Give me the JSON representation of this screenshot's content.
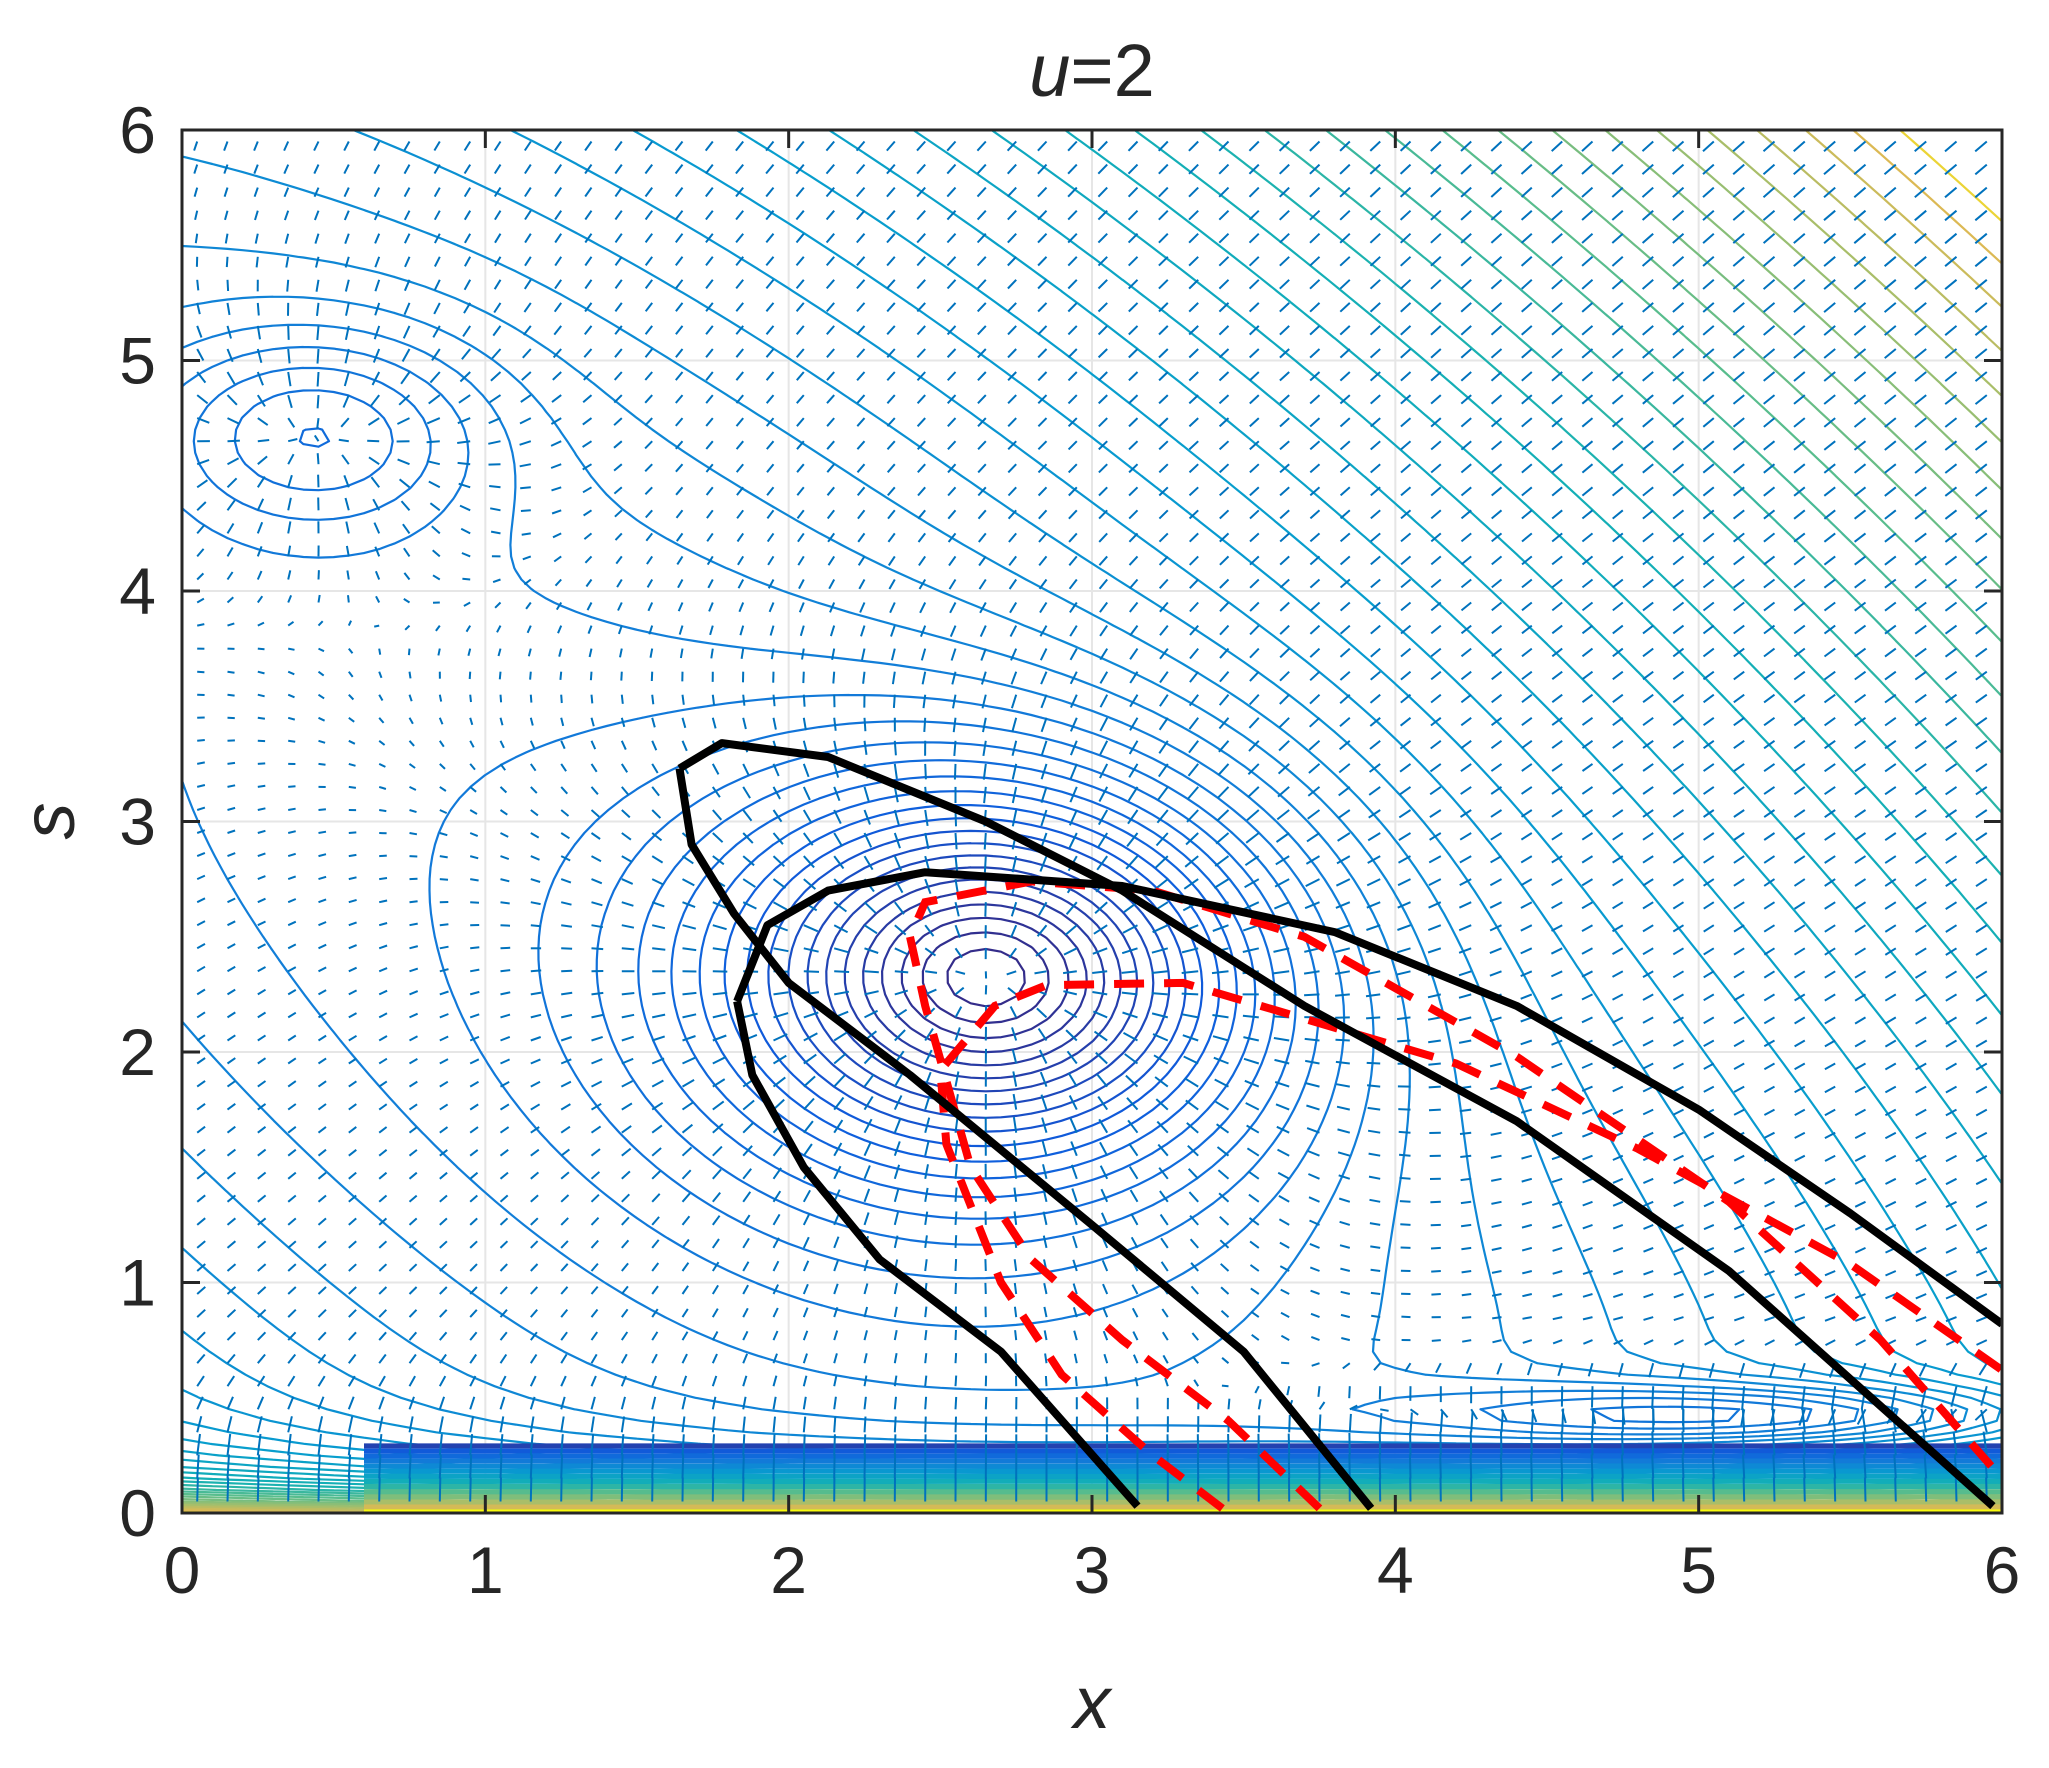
{
  "chart_data": {
    "type": "contour",
    "title": "u=2",
    "title_var": "u",
    "title_rest": "=2",
    "xlabel": "x",
    "ylabel": "s",
    "xlim": [
      0,
      6
    ],
    "ylim": [
      0,
      6
    ],
    "xticks": [
      0,
      1,
      2,
      3,
      4,
      5,
      6
    ],
    "yticks": [
      0,
      1,
      2,
      3,
      4,
      5,
      6
    ],
    "xtick_labels": [
      "0",
      "1",
      "2",
      "3",
      "4",
      "5",
      "6"
    ],
    "ytick_labels": [
      "0",
      "1",
      "2",
      "3",
      "4",
      "5",
      "6"
    ],
    "grid": true,
    "colormap": "parula",
    "quiver_color": "#0072BD",
    "boundary_color": "#000000",
    "reference_color": "#FF0000",
    "boundary_curves": [
      {
        "points": [
          [
            1.64,
            3.23
          ],
          [
            1.78,
            3.34
          ],
          [
            2.13,
            3.28
          ],
          [
            2.65,
            3.0
          ],
          [
            3.1,
            2.7
          ],
          [
            3.7,
            2.2
          ],
          [
            4.4,
            1.7
          ],
          [
            5.1,
            1.05
          ],
          [
            5.97,
            0.03
          ]
        ]
      },
      {
        "points": [
          [
            1.64,
            3.23
          ],
          [
            1.68,
            2.9
          ],
          [
            1.82,
            2.6
          ],
          [
            2.0,
            2.3
          ],
          [
            2.4,
            1.9
          ],
          [
            3.0,
            1.25
          ],
          [
            3.5,
            0.7
          ],
          [
            3.92,
            0.02
          ]
        ]
      },
      {
        "points": [
          [
            1.83,
            2.22
          ],
          [
            1.88,
            1.9
          ],
          [
            2.05,
            1.5
          ],
          [
            2.3,
            1.1
          ],
          [
            2.7,
            0.7
          ],
          [
            3.15,
            0.03
          ]
        ]
      },
      {
        "points": [
          [
            1.83,
            2.22
          ],
          [
            1.93,
            2.55
          ],
          [
            2.13,
            2.7
          ],
          [
            2.45,
            2.78
          ],
          [
            3.1,
            2.72
          ],
          [
            3.8,
            2.52
          ],
          [
            4.4,
            2.2
          ],
          [
            5.0,
            1.75
          ],
          [
            5.5,
            1.3
          ],
          [
            6.0,
            0.82
          ]
        ]
      }
    ],
    "reference_curves": [
      {
        "points": [
          [
            3.43,
            0.02
          ],
          [
            3.2,
            0.25
          ],
          [
            2.9,
            0.6
          ],
          [
            2.7,
            1.0
          ],
          [
            2.52,
            1.6
          ],
          [
            2.5,
            1.92
          ],
          [
            2.68,
            2.2
          ],
          [
            2.85,
            2.29
          ],
          [
            3.3,
            2.3
          ],
          [
            4.2,
            1.95
          ],
          [
            4.8,
            1.58
          ],
          [
            5.5,
            1.08
          ],
          [
            6.0,
            0.62
          ]
        ]
      },
      {
        "points": [
          [
            3.75,
            0.02
          ],
          [
            3.45,
            0.4
          ],
          [
            3.1,
            0.75
          ],
          [
            2.8,
            1.1
          ],
          [
            2.6,
            1.5
          ],
          [
            2.45,
            2.2
          ],
          [
            2.4,
            2.5
          ],
          [
            2.45,
            2.65
          ],
          [
            2.8,
            2.74
          ],
          [
            3.2,
            2.7
          ],
          [
            3.7,
            2.5
          ],
          [
            4.4,
            1.98
          ],
          [
            5.1,
            1.35
          ],
          [
            5.6,
            0.75
          ],
          [
            6.0,
            0.15
          ]
        ]
      }
    ]
  }
}
